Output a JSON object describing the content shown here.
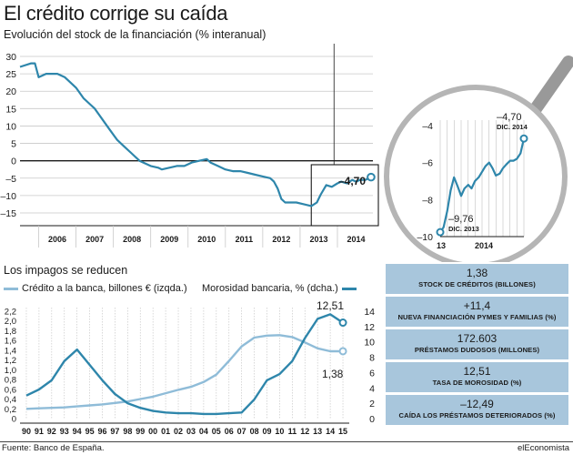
{
  "header": {
    "title": "El crédito corrige su caída",
    "subtitle": "Evolución del stock de la financiación (% interanual)"
  },
  "colors": {
    "accent": "#2e86ab",
    "light": "#8fbcd8",
    "panel": "#a8c6dc",
    "grid": "#c8c8c8"
  },
  "chart_data": [
    {
      "type": "line",
      "title": "Evolución del stock de la financiación (% interanual)",
      "xlabel": "",
      "ylabel": "",
      "x_ticks": [
        "2006",
        "2007",
        "2008",
        "2009",
        "2010",
        "2011",
        "2012",
        "2013",
        "2014"
      ],
      "y_ticks": [
        30,
        25,
        20,
        15,
        10,
        5,
        0,
        -5,
        -10,
        -15
      ],
      "xlim": [
        2005.5,
        2014.95
      ],
      "ylim": [
        -15,
        30
      ],
      "grid": true,
      "end_label": "–4,70",
      "series": [
        {
          "x": [
            2005.5,
            2005.8,
            2005.9,
            2006.0,
            2006.2,
            2006.4,
            2006.5,
            2006.7,
            2006.9,
            2007.0,
            2007.2,
            2007.4,
            2007.5,
            2007.7,
            2007.9,
            2008.1,
            2008.3,
            2008.5,
            2008.7,
            2008.9,
            2009.0,
            2009.2,
            2009.3,
            2009.5,
            2009.7,
            2009.9,
            2010.1,
            2010.3,
            2010.5,
            2010.6,
            2010.8,
            2011.0,
            2011.2,
            2011.4,
            2011.6,
            2011.8,
            2012.0,
            2012.2,
            2012.3,
            2012.4,
            2012.5,
            2012.6,
            2012.8,
            2012.9,
            2013.1,
            2013.3,
            2013.45,
            2013.55,
            2013.7,
            2013.85,
            2014.0,
            2014.1,
            2014.25,
            2014.4,
            2014.5,
            2014.6,
            2014.75,
            2014.9
          ],
          "y": [
            27,
            28,
            28,
            24,
            25,
            25,
            25,
            24,
            22,
            21,
            18,
            16,
            15,
            12,
            9,
            6,
            4,
            2,
            0,
            -1,
            -1.5,
            -2,
            -2.5,
            -2,
            -1.5,
            -1.5,
            -0.5,
            0,
            0.5,
            -0.5,
            -1.5,
            -2.5,
            -3,
            -3,
            -3.5,
            -4,
            -4.5,
            -5,
            -6,
            -8,
            -11,
            -12,
            -12,
            -12,
            -12.5,
            -13,
            -12,
            -9.76,
            -7,
            -7.5,
            -6.5,
            -6,
            -6.5,
            -5.5,
            -6,
            -5.5,
            -5.5,
            -4.7
          ]
        }
      ]
    },
    {
      "type": "line",
      "title": "",
      "x_ticks": [
        "13",
        "2014"
      ],
      "y_ticks": [
        -4,
        -6,
        -8,
        -10
      ],
      "xlim": [
        2013.0,
        2015.0
      ],
      "ylim": [
        -10,
        -4
      ],
      "annotations": [
        {
          "value": "–9,76",
          "date": "DIC. 2013"
        },
        {
          "value": "–4,70",
          "date": "DIC. 2014"
        }
      ],
      "series": [
        {
          "x": [
            2013.0,
            2013.08,
            2013.17,
            2013.25,
            2013.33,
            2013.42,
            2013.5,
            2013.58,
            2013.67,
            2013.75,
            2013.83,
            2013.92,
            2014.0,
            2014.08,
            2014.17,
            2014.25,
            2014.33,
            2014.42,
            2014.5,
            2014.58,
            2014.67,
            2014.75,
            2014.83,
            2014.92,
            2015.0
          ],
          "y": [
            -9.76,
            -9.5,
            -8.6,
            -7.5,
            -6.8,
            -7.3,
            -7.8,
            -7.4,
            -7.2,
            -7.4,
            -7.0,
            -6.8,
            -6.5,
            -6.2,
            -6.0,
            -6.3,
            -6.7,
            -6.6,
            -6.3,
            -6.1,
            -5.9,
            -5.9,
            -5.8,
            -5.5,
            -4.7
          ]
        }
      ]
    },
    {
      "type": "line",
      "title": "Los impagos se reducen",
      "categories": [
        "90",
        "91",
        "92",
        "93",
        "94",
        "95",
        "96",
        "97",
        "98",
        "99",
        "00",
        "01",
        "02",
        "03",
        "04",
        "05",
        "06",
        "07",
        "08",
        "09",
        "10",
        "11",
        "12",
        "13",
        "14",
        "15"
      ],
      "left_ticks": [
        "2,2",
        "2,0",
        "1,8",
        "1,6",
        "1,4",
        "1,2",
        "1,0",
        "0,8",
        "0,6",
        "0,4",
        "0,2",
        "0"
      ],
      "right_ticks": [
        "14",
        "12",
        "10",
        "8",
        "6",
        "4",
        "2",
        "0"
      ],
      "left_lim": [
        0,
        2.2
      ],
      "right_lim": [
        0,
        14
      ],
      "legend": [
        {
          "label": "Crédito a la banca, billones € (izqda.)"
        },
        {
          "label": "Morosidad bancaria, % (dcha.)"
        }
      ],
      "labels": {
        "morosidad_end": "12,51",
        "credito_end": "1,38"
      },
      "series": [
        {
          "name": "Crédito a la banca, billones € (izqda.)",
          "axis": "left",
          "x": [
            1990,
            1991,
            1992,
            1993,
            1994,
            1995,
            1996,
            1997,
            1998,
            1999,
            2000,
            2001,
            2002,
            2003,
            2004,
            2005,
            2006,
            2007,
            2008,
            2009,
            2010,
            2011,
            2012,
            2013,
            2014,
            2015
          ],
          "y": [
            0.2,
            0.21,
            0.22,
            0.23,
            0.25,
            0.27,
            0.29,
            0.32,
            0.35,
            0.4,
            0.45,
            0.52,
            0.59,
            0.65,
            0.75,
            0.9,
            1.18,
            1.48,
            1.66,
            1.7,
            1.71,
            1.67,
            1.56,
            1.44,
            1.38,
            1.38
          ]
        },
        {
          "name": "Morosidad bancaria, % (dcha.)",
          "axis": "right",
          "x": [
            1990,
            1991,
            1992,
            1993,
            1994,
            1995,
            1996,
            1997,
            1998,
            1999,
            2000,
            2001,
            2002,
            2003,
            2004,
            2005,
            2006,
            2007,
            2008,
            2009,
            2010,
            2011,
            2012,
            2013,
            2014,
            2015
          ],
          "y": [
            3.0,
            3.8,
            5.0,
            7.5,
            9.0,
            7.0,
            5.0,
            3.2,
            2.0,
            1.4,
            1.0,
            0.8,
            0.7,
            0.7,
            0.6,
            0.6,
            0.7,
            0.8,
            2.5,
            5.0,
            5.8,
            7.5,
            10.5,
            13.0,
            13.6,
            12.51
          ]
        }
      ]
    }
  ],
  "legend": {
    "credito": "Crédito a la banca, billones € (izqda.)",
    "morosidad": "Morosidad bancaria, % (dcha.)"
  },
  "stats": [
    {
      "value": "1,38",
      "label": "STOCK DE CRÉDITOS (BILLONES)"
    },
    {
      "value": "+11,4",
      "label": "NUEVA FINANCIACIÓN PYMES Y FAMILIAS (%)"
    },
    {
      "value": "172.603",
      "label": "PRÉSTAMOS DUDOSOS (MILLONES)"
    },
    {
      "value": "12,51",
      "label": "TASA DE MOROSIDAD (%)"
    },
    {
      "value": "–12,49",
      "label": "CAÍDA LOS PRÉSTAMOS DETERIORADOS (%)"
    }
  ],
  "footer": {
    "source": "Fuente: Banco de España.",
    "brand": "elEconomista"
  }
}
